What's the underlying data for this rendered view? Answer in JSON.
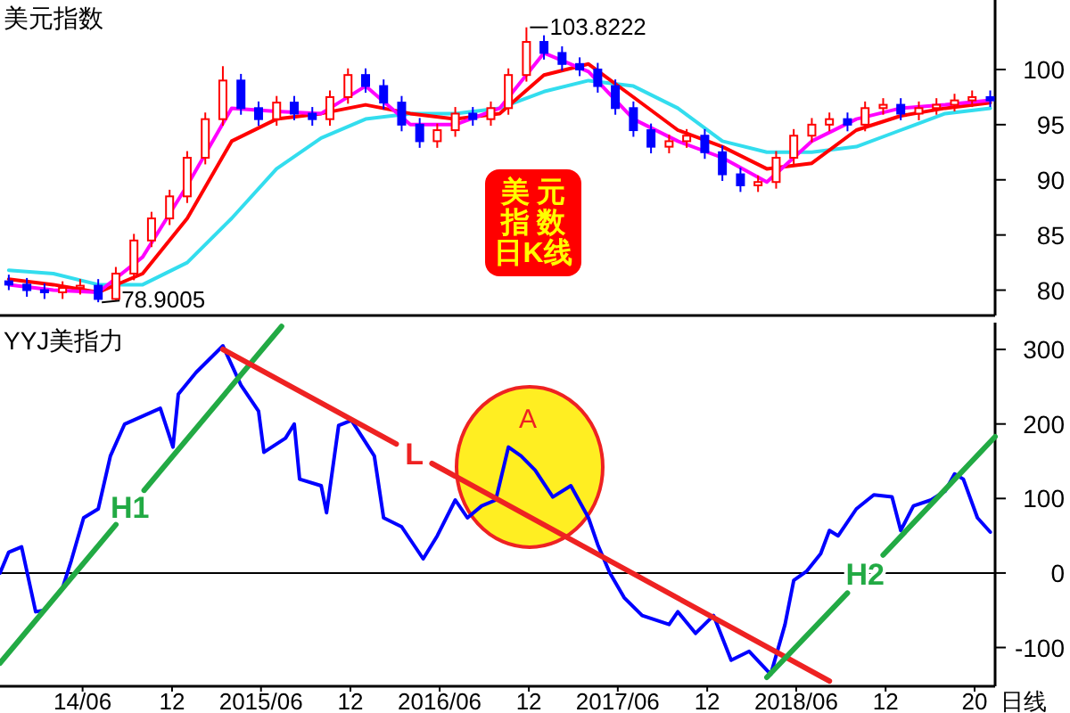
{
  "chart_data": [
    {
      "type": "candlestick",
      "title": "美元指数",
      "tick_labels": "y",
      "xlim": [
        "2013-12-14",
        "2019-07-13"
      ],
      "ylim": [
        77.7,
        106.3
      ],
      "yticks": [
        80,
        85,
        90,
        95,
        100
      ],
      "x": [
        "2014-01-01",
        "2014-02-07",
        "2014-03-15",
        "2014-04-21",
        "2014-05-27",
        "2014-07-03",
        "2014-08-08",
        "2014-09-14",
        "2014-10-20",
        "2014-11-26",
        "2015-01-01",
        "2015-02-07",
        "2015-03-15",
        "2015-04-21",
        "2015-05-27",
        "2015-07-03",
        "2015-08-08",
        "2015-09-14",
        "2015-10-20",
        "2015-11-26",
        "2016-01-01",
        "2016-02-07",
        "2016-03-15",
        "2016-04-21",
        "2016-05-27",
        "2016-07-03",
        "2016-08-08",
        "2016-09-14",
        "2016-10-20",
        "2016-11-26",
        "2017-01-01",
        "2017-02-07",
        "2017-03-15",
        "2017-04-21",
        "2017-05-27",
        "2017-07-03",
        "2017-08-08",
        "2017-09-14",
        "2017-10-20",
        "2017-11-26",
        "2018-01-01",
        "2018-02-07",
        "2018-03-15",
        "2018-04-21",
        "2018-05-27",
        "2018-07-03",
        "2018-08-08",
        "2018-09-14",
        "2018-10-20",
        "2018-11-26",
        "2019-01-01",
        "2019-02-07",
        "2019-03-15",
        "2019-04-21",
        "2019-05-27",
        "2019-07-03"
      ],
      "ohlc": [
        [
          80.8,
          81.4,
          80.0,
          80.5
        ],
        [
          80.5,
          81.1,
          79.4,
          80.0
        ],
        [
          80.0,
          80.6,
          79.2,
          79.8
        ],
        [
          79.8,
          80.8,
          79.2,
          80.2
        ],
        [
          80.2,
          81.0,
          79.6,
          80.4
        ],
        [
          80.4,
          81.0,
          78.9005,
          79.2
        ],
        [
          79.2,
          82.1,
          79.1,
          81.5
        ],
        [
          81.5,
          85.1,
          80.9,
          84.5
        ],
        [
          84.5,
          87.1,
          83.9,
          86.5
        ],
        [
          86.5,
          89.1,
          85.9,
          88.5
        ],
        [
          88.5,
          92.6,
          87.9,
          92.0
        ],
        [
          92.0,
          96.1,
          91.4,
          95.5
        ],
        [
          95.5,
          100.3,
          94.9,
          99.0
        ],
        [
          99.0,
          99.6,
          95.9,
          96.5
        ],
        [
          96.5,
          97.1,
          94.9,
          95.5
        ],
        [
          95.5,
          97.6,
          94.9,
          97.0
        ],
        [
          97.0,
          97.6,
          95.4,
          96.0
        ],
        [
          96.0,
          96.6,
          94.9,
          95.5
        ],
        [
          95.5,
          98.1,
          94.9,
          97.5
        ],
        [
          97.5,
          100.1,
          96.9,
          99.5
        ],
        [
          99.5,
          100.1,
          97.9,
          98.5
        ],
        [
          98.5,
          99.1,
          96.4,
          97.0
        ],
        [
          97.0,
          97.6,
          94.4,
          95.0
        ],
        [
          95.0,
          95.6,
          92.9,
          93.5
        ],
        [
          93.5,
          95.1,
          92.9,
          94.5
        ],
        [
          94.5,
          96.6,
          93.9,
          96.0
        ],
        [
          96.0,
          96.6,
          94.9,
          95.5
        ],
        [
          95.5,
          97.1,
          94.9,
          96.5
        ],
        [
          96.5,
          100.1,
          95.9,
          99.5
        ],
        [
          99.5,
          103.8222,
          98.9,
          102.5
        ],
        [
          102.5,
          103.1,
          100.9,
          101.5
        ],
        [
          101.5,
          102.1,
          99.9,
          100.5
        ],
        [
          100.5,
          101.1,
          99.4,
          100.0
        ],
        [
          100.0,
          100.6,
          97.9,
          98.5
        ],
        [
          98.5,
          99.1,
          95.9,
          96.5
        ],
        [
          96.5,
          97.1,
          93.9,
          94.5
        ],
        [
          94.5,
          95.1,
          92.4,
          93.0
        ],
        [
          93.0,
          94.1,
          92.4,
          93.5
        ],
        [
          93.5,
          94.6,
          92.9,
          94.0
        ],
        [
          94.0,
          94.6,
          91.9,
          92.5
        ],
        [
          92.5,
          93.1,
          89.9,
          90.5
        ],
        [
          90.5,
          91.1,
          88.9,
          89.5
        ],
        [
          89.5,
          90.4,
          88.9,
          89.8
        ],
        [
          89.8,
          92.6,
          89.2,
          92.0
        ],
        [
          92.0,
          94.6,
          91.4,
          94.0
        ],
        [
          94.0,
          95.6,
          93.4,
          95.0
        ],
        [
          95.0,
          96.1,
          94.4,
          95.5
        ],
        [
          95.5,
          96.1,
          94.4,
          95.0
        ],
        [
          95.0,
          97.1,
          94.4,
          96.5
        ],
        [
          96.5,
          97.4,
          95.9,
          96.8
        ],
        [
          96.8,
          97.4,
          95.4,
          96.0
        ],
        [
          96.0,
          97.1,
          95.4,
          96.5
        ],
        [
          96.5,
          97.4,
          95.9,
          96.8
        ],
        [
          96.8,
          97.8,
          96.2,
          97.2
        ],
        [
          97.2,
          98.1,
          96.6,
          97.5
        ],
        [
          97.5,
          98.1,
          96.6,
          97.2
        ]
      ],
      "series": [
        {
          "type": "line",
          "color": "#33ddee",
          "x": [
            "2014-01-01",
            "2014-04-02",
            "2014-07-03",
            "2014-10-02",
            "2015-01-01",
            "2015-04-02",
            "2015-07-03",
            "2015-10-02",
            "2016-01-01",
            "2016-04-02",
            "2016-07-03",
            "2016-10-02",
            "2017-01-01",
            "2017-04-02",
            "2017-07-03",
            "2017-10-02",
            "2018-01-01",
            "2018-04-02",
            "2018-07-03",
            "2018-10-02",
            "2019-01-01",
            "2019-04-02",
            "2019-07-03"
          ],
          "values": [
            81.8,
            81.5,
            80.5,
            80.5,
            82.5,
            86.5,
            91.0,
            93.8,
            95.5,
            96.0,
            96.0,
            96.5,
            98.0,
            99.0,
            98.5,
            96.5,
            93.5,
            92.5,
            92.5,
            93.0,
            94.5,
            96.0,
            96.5
          ]
        },
        {
          "type": "line",
          "color": "#ff0000",
          "x": [
            "2014-01-01",
            "2014-04-02",
            "2014-07-03",
            "2014-10-02",
            "2015-01-01",
            "2015-04-02",
            "2015-07-03",
            "2015-10-02",
            "2016-01-01",
            "2016-04-02",
            "2016-07-03",
            "2016-10-02",
            "2017-01-01",
            "2017-04-02",
            "2017-07-03",
            "2017-10-02",
            "2018-01-01",
            "2018-04-02",
            "2018-07-03",
            "2018-10-02",
            "2019-01-01",
            "2019-04-02",
            "2019-07-03"
          ],
          "values": [
            81.0,
            80.5,
            79.8,
            81.5,
            86.5,
            93.5,
            95.5,
            96.0,
            96.8,
            96.0,
            95.5,
            96.0,
            99.5,
            100.5,
            97.5,
            94.5,
            93.0,
            91.0,
            91.5,
            94.5,
            95.8,
            96.5,
            97.0
          ]
        },
        {
          "type": "line",
          "color": "#ff00ff",
          "x": [
            "2014-01-01",
            "2014-04-02",
            "2014-07-03",
            "2014-10-02",
            "2015-01-01",
            "2015-04-02",
            "2015-07-03",
            "2015-10-02",
            "2016-01-01",
            "2016-04-02",
            "2016-07-03",
            "2016-10-02",
            "2017-01-01",
            "2017-04-02",
            "2017-07-03",
            "2017-10-02",
            "2018-01-01",
            "2018-04-02",
            "2018-07-03",
            "2018-10-02",
            "2019-01-01",
            "2019-04-02",
            "2019-07-03"
          ],
          "values": [
            80.5,
            80.0,
            79.8,
            83.0,
            89.5,
            96.5,
            96.2,
            96.0,
            98.5,
            95.0,
            95.0,
            96.5,
            101.5,
            99.8,
            95.5,
            93.5,
            92.0,
            89.8,
            93.5,
            95.5,
            96.5,
            96.8,
            97.2
          ]
        }
      ],
      "annotations": [
        "103.8222",
        "78.9005",
        "美元指数日K线"
      ]
    },
    {
      "type": "line",
      "title": "YYJ美指力",
      "xlim": [
        "2013-12-14",
        "2019-07-13"
      ],
      "ylim": [
        -152,
        336
      ],
      "yticks": [
        -100,
        0,
        100,
        200,
        300
      ],
      "xticks": [
        {
          "value": "2014-06",
          "label": "14/06"
        },
        {
          "value": "2014-12",
          "label": "12"
        },
        {
          "value": "2015-06",
          "label": "2015/06"
        },
        {
          "value": "2015-12",
          "label": "12"
        },
        {
          "value": "2016-06",
          "label": "2016/06"
        },
        {
          "value": "2016-12",
          "label": "12"
        },
        {
          "value": "2017-06",
          "label": "2017/06"
        },
        {
          "value": "2017-12",
          "label": "12"
        },
        {
          "value": "2018-06",
          "label": "2018/06"
        },
        {
          "value": "2018-12",
          "label": "12"
        },
        {
          "value": "2019-06",
          "label": "20"
        }
      ],
      "ref_lines": [
        {
          "axis": "y",
          "value": 0,
          "color": "#000000"
        }
      ],
      "series": [
        {
          "color": "#0000ff",
          "x": [
            "2013-12-14",
            "2014-01-01",
            "2014-01-27",
            "2014-02-25",
            "2014-03-15",
            "2014-04-21",
            "2014-05-09",
            "2014-06-03",
            "2014-07-03",
            "2014-07-28",
            "2014-08-26",
            "2014-11-07",
            "2014-12-03",
            "2014-12-14",
            "2015-01-19",
            "2015-03-15",
            "2015-04-21",
            "2015-05-27",
            "2015-06-07",
            "2015-07-21",
            "2015-08-08",
            "2015-08-19",
            "2015-10-02",
            "2015-10-13",
            "2015-11-07",
            "2015-12-03",
            "2016-01-19",
            "2016-02-07",
            "2016-03-15",
            "2016-04-28",
            "2016-05-27",
            "2016-07-03",
            "2016-07-28",
            "2016-08-26",
            "2016-09-24",
            "2016-10-20",
            "2016-11-15",
            "2016-12-14",
            "2017-01-19",
            "2017-02-25",
            "2017-04-02",
            "2017-04-21",
            "2017-05-16",
            "2017-06-14",
            "2017-07-21",
            "2017-09-14",
            "2017-10-02",
            "2017-11-07",
            "2017-12-14",
            "2018-01-19",
            "2018-02-25",
            "2018-04-10",
            "2018-05-09",
            "2018-05-27",
            "2018-06-22",
            "2018-07-21",
            "2018-08-08",
            "2018-08-26",
            "2018-10-02",
            "2018-11-07",
            "2018-12-14",
            "2019-01-01",
            "2019-01-27",
            "2019-03-04",
            "2019-04-02",
            "2019-04-21",
            "2019-05-09",
            "2019-06-07",
            "2019-07-03"
          ],
          "values": [
            0,
            28,
            35,
            -52,
            -50,
            -20,
            17,
            74,
            86,
            157,
            200,
            221,
            169,
            240,
            269,
            305,
            252,
            217,
            162,
            181,
            200,
            126,
            117,
            81,
            198,
            205,
            157,
            74,
            62,
            19,
            50,
            98,
            74,
            90,
            98,
            169,
            157,
            138,
            102,
            117,
            74,
            38,
            0,
            -33,
            -57,
            -69,
            -52,
            -81,
            -57,
            -117,
            -105,
            -136,
            -69,
            -10,
            2,
            26,
            57,
            50,
            86,
            105,
            102,
            57,
            90,
            98,
            110,
            133,
            126,
            74,
            55
          ]
        },
        {
          "name": "H1",
          "color": "#22aa44",
          "x": [
            "2013-12-14",
            "2014-08-08",
            "2014-09-06",
            "2014-10-05",
            "2015-07-13"
          ],
          "values": [
            -121,
            65,
            null,
            111,
            331
          ]
        },
        {
          "name": "L",
          "color": "#ee2222",
          "x": [
            "2015-03-15",
            "2016-03-04",
            "2016-04-10",
            "2016-05-16",
            "2018-08-08"
          ],
          "values": [
            300,
            173,
            null,
            147,
            -145
          ]
        },
        {
          "name": "H2",
          "color": "#22aa44",
          "x": [
            "2018-04-02",
            "2018-09-14",
            "2018-10-20",
            "2018-11-26",
            "2019-07-13"
          ],
          "values": [
            -140,
            -27,
            null,
            24,
            183
          ]
        }
      ],
      "annotations": [
        "A",
        "日线"
      ]
    }
  ]
}
